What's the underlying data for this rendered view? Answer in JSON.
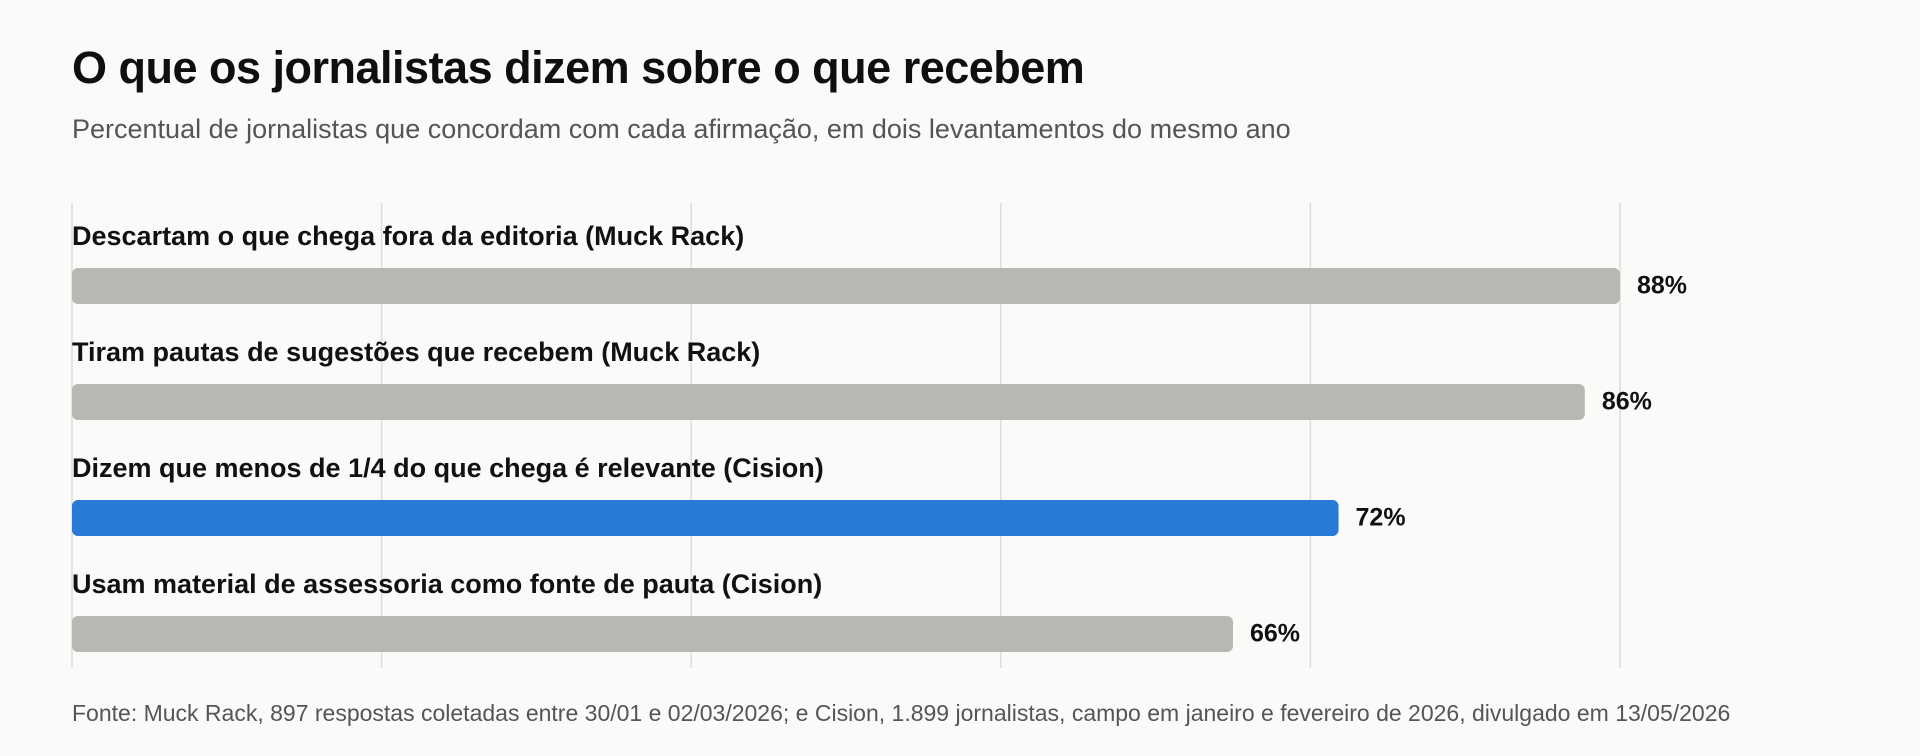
{
  "header": {
    "title": "O que os jornalistas dizem sobre o que recebem",
    "subtitle": "Percentual de jornalistas que concordam com cada afirmação, em dois levantamentos do mesmo ano"
  },
  "footer": {
    "source": "Fonte: Muck Rack, 897 respostas coletadas entre 30/01 e 02/03/2026; e Cision, 1.899 jornalistas, campo em janeiro e fevereiro de 2026, divulgado em 13/05/2026"
  },
  "chart_data": {
    "type": "bar",
    "orientation": "horizontal",
    "categories": [
      "Descartam o que chega fora da editoria (Muck Rack)",
      "Tiram pautas de sugestões que recebem (Muck Rack)",
      "Dizem que menos de 1/4 do que chega é relevante (Cision)",
      "Usam material de assessoria como fonte de pauta (Cision)"
    ],
    "values": [
      88,
      86,
      72,
      66
    ],
    "value_labels": [
      "88%",
      "86%",
      "72%",
      "66%"
    ],
    "unit": "%",
    "xlim": [
      0,
      88
    ],
    "grid": true,
    "highlight_index": 2,
    "colors": {
      "default_bar": "#b8b8b3",
      "highlight_bar": "#2979d6",
      "grid": "#dcdcdc",
      "label": "#111111"
    }
  }
}
